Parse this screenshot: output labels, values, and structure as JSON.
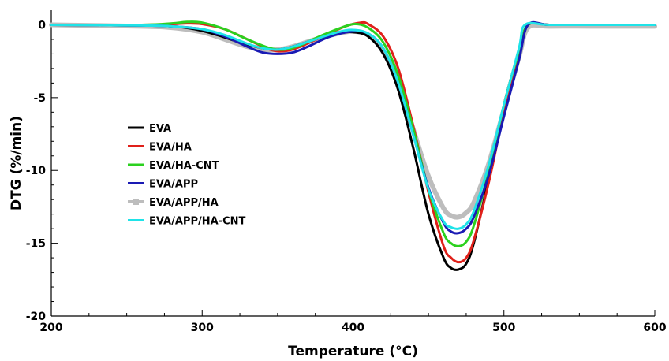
{
  "chart_data": {
    "type": "line",
    "xlabel": "Temperature (°C)",
    "ylabel": "DTG (%/min)",
    "xlim": [
      200,
      600
    ],
    "ylim": [
      -20,
      1
    ],
    "x_ticks": [
      200,
      300,
      400,
      500,
      600
    ],
    "y_ticks": [
      0,
      -5,
      -10,
      -15,
      -20
    ],
    "grid": false,
    "legend_position": "left-center",
    "series": [
      {
        "name": "EVA",
        "color": "#000000",
        "x": [
          200,
          260,
          280,
          295,
          310,
          325,
          340,
          350,
          360,
          375,
          390,
          400,
          410,
          420,
          430,
          440,
          450,
          460,
          465,
          470,
          475,
          480,
          490,
          500,
          510,
          516,
          530,
          560,
          600
        ],
        "y": [
          0,
          -0.05,
          -0.1,
          -0.3,
          -0.7,
          -1.2,
          -1.6,
          -1.7,
          -1.5,
          -1.0,
          -0.6,
          -0.5,
          -0.8,
          -2.0,
          -4.5,
          -8.5,
          -13.0,
          -16.0,
          -16.7,
          -16.8,
          -16.4,
          -15.0,
          -10.5,
          -5.5,
          -1.8,
          0,
          0,
          0,
          0
        ]
      },
      {
        "name": "EVA/HA",
        "color": "#e0201a",
        "x": [
          200,
          260,
          280,
          290,
          300,
          315,
          330,
          345,
          355,
          365,
          380,
          395,
          405,
          410,
          420,
          430,
          440,
          450,
          460,
          465,
          470,
          475,
          480,
          490,
          500,
          510,
          516,
          530,
          560,
          600
        ],
        "y": [
          0,
          0,
          0.05,
          0.1,
          0.05,
          -0.3,
          -1.0,
          -1.7,
          -1.8,
          -1.5,
          -0.8,
          -0.1,
          0.15,
          0.05,
          -0.8,
          -3.0,
          -7.0,
          -11.5,
          -15.2,
          -16.0,
          -16.3,
          -16.0,
          -14.8,
          -10.8,
          -6.0,
          -2.0,
          0,
          0,
          0,
          0
        ]
      },
      {
        "name": "EVA/HA-CNT",
        "color": "#2bd11f",
        "x": [
          200,
          260,
          280,
          290,
          300,
          315,
          330,
          345,
          355,
          365,
          380,
          395,
          402,
          410,
          420,
          430,
          440,
          450,
          460,
          465,
          470,
          475,
          480,
          490,
          500,
          510,
          516,
          530,
          560,
          600
        ],
        "y": [
          0,
          0,
          0.1,
          0.2,
          0.15,
          -0.3,
          -1.0,
          -1.6,
          -1.7,
          -1.4,
          -0.7,
          -0.1,
          0.05,
          -0.2,
          -1.2,
          -3.5,
          -7.2,
          -11.3,
          -14.3,
          -15.0,
          -15.2,
          -14.9,
          -13.8,
          -10.0,
          -5.5,
          -1.8,
          0,
          0,
          0,
          0
        ]
      },
      {
        "name": "EVA/APP",
        "color": "#1a1ab4",
        "x": [
          200,
          260,
          280,
          300,
          315,
          330,
          340,
          350,
          360,
          370,
          385,
          400,
          410,
          420,
          430,
          440,
          450,
          460,
          465,
          470,
          475,
          480,
          490,
          500,
          510,
          516,
          530,
          560,
          600
        ],
        "y": [
          0,
          -0.05,
          -0.1,
          -0.3,
          -0.8,
          -1.5,
          -1.9,
          -2.0,
          -1.9,
          -1.5,
          -0.8,
          -0.45,
          -0.6,
          -1.6,
          -4.0,
          -7.6,
          -11.2,
          -13.6,
          -14.2,
          -14.3,
          -14.0,
          -13.2,
          -10.3,
          -6.3,
          -2.4,
          0,
          0,
          0,
          0
        ]
      },
      {
        "name": "EVA/APP/HA",
        "color": "#bdbdbd",
        "x": [
          200,
          260,
          280,
          300,
          315,
          330,
          340,
          350,
          360,
          375,
          390,
          400,
          410,
          420,
          430,
          440,
          450,
          460,
          465,
          470,
          475,
          480,
          490,
          500,
          510,
          516,
          530,
          560,
          600
        ],
        "y": [
          0,
          -0.1,
          -0.2,
          -0.5,
          -1.0,
          -1.5,
          -1.7,
          -1.7,
          -1.5,
          -1.0,
          -0.6,
          -0.45,
          -0.7,
          -1.8,
          -4.0,
          -7.2,
          -10.4,
          -12.6,
          -13.1,
          -13.2,
          -12.9,
          -12.2,
          -9.5,
          -5.8,
          -2.2,
          -0.2,
          -0.1,
          -0.1,
          -0.1
        ]
      },
      {
        "name": "EVA/APP/HA-CNT",
        "color": "#1fe3e8",
        "x": [
          200,
          260,
          280,
          300,
          315,
          330,
          340,
          350,
          360,
          375,
          390,
          400,
          410,
          420,
          430,
          440,
          450,
          460,
          465,
          470,
          475,
          480,
          490,
          500,
          510,
          514,
          530,
          560,
          600
        ],
        "y": [
          0,
          -0.05,
          -0.1,
          -0.3,
          -0.7,
          -1.3,
          -1.6,
          -1.7,
          -1.5,
          -1.0,
          -0.5,
          -0.35,
          -0.6,
          -1.6,
          -4.0,
          -7.6,
          -11.3,
          -13.5,
          -13.9,
          -14.0,
          -13.7,
          -12.8,
          -9.6,
          -5.5,
          -1.6,
          0,
          0,
          0,
          0
        ]
      }
    ]
  }
}
